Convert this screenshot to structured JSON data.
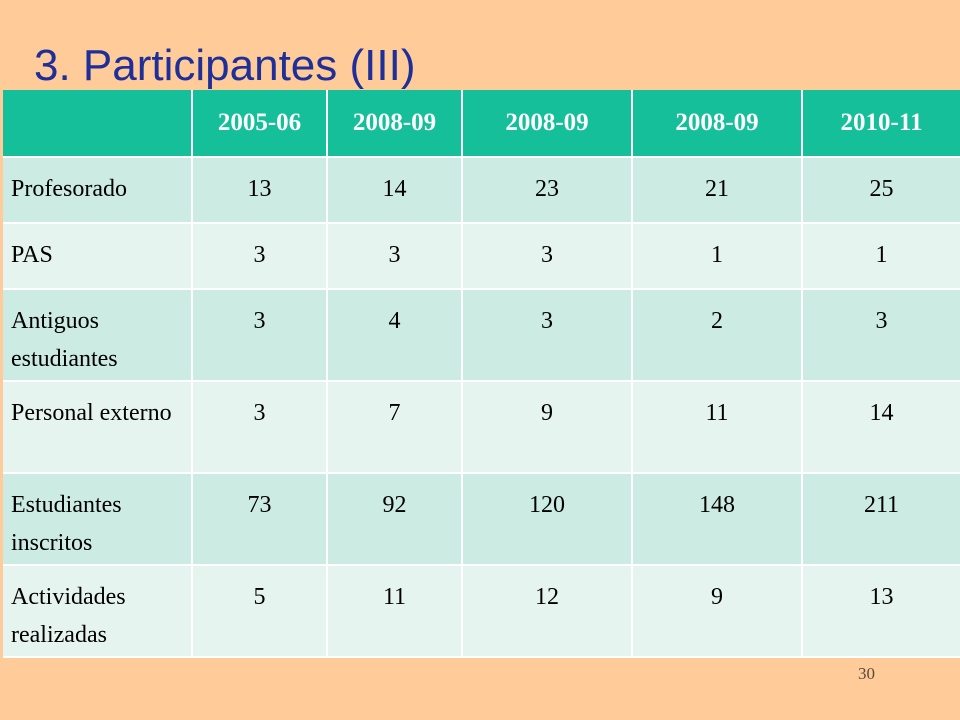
{
  "slide": {
    "title": "3. Participantes (III)",
    "page_number": "30"
  },
  "table": {
    "headers": [
      "",
      "2005-06",
      "2008-09",
      "2008-09",
      "2008-09",
      "2010-11"
    ],
    "rows": [
      {
        "label": "Profesorado",
        "values": [
          "13",
          "14",
          "23",
          "21",
          "25"
        ]
      },
      {
        "label": "PAS",
        "values": [
          "3",
          "3",
          "3",
          "1",
          "1"
        ]
      },
      {
        "label": "Antiguos estudiantes",
        "values": [
          "3",
          "4",
          "3",
          "2",
          "3"
        ]
      },
      {
        "label": "Personal externo",
        "values": [
          "3",
          "7",
          "9",
          "11",
          "14"
        ]
      },
      {
        "label": "Estudiantes inscritos",
        "values": [
          "73",
          "92",
          "120",
          "148",
          "211"
        ]
      },
      {
        "label": "Actividades realizadas",
        "values": [
          "5",
          "11",
          "12",
          "9",
          "13"
        ]
      }
    ]
  },
  "colors": {
    "background": "#FFCB99",
    "title": "#1F2F9A",
    "header": "#14BF9A",
    "row_band_1": "#CCEBE2",
    "row_band_2": "#E6F4F0"
  }
}
